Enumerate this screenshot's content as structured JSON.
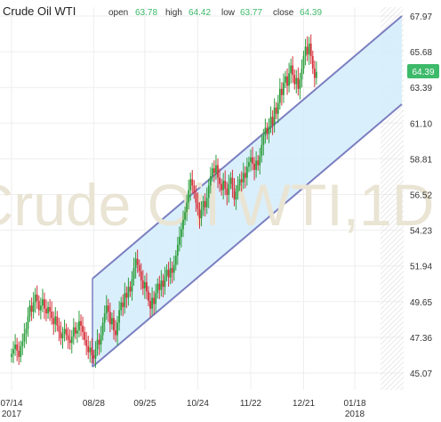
{
  "header": {
    "title": "Crude Oil WTI",
    "fields": [
      {
        "label": "open",
        "value": "63.78"
      },
      {
        "label": "high",
        "value": "64.42"
      },
      {
        "label": "low",
        "value": "63.77"
      },
      {
        "label": "close",
        "value": "64.39"
      }
    ]
  },
  "watermark": "Crude Oil WTI,1D",
  "last_price_badge": "64.39",
  "colors": {
    "up": "#2e9e3e",
    "down": "#d6313b",
    "channel_fill": "#d3ecfb",
    "channel_line": "#7b7fc0",
    "value_green": "#3dba6a",
    "watermark": "#e9e4d3",
    "grid": "#eeeeee"
  },
  "chart_data": {
    "type": "candlestick",
    "timeframe": "1D",
    "y_ticks": [
      "67.97",
      "65.68",
      "63.39",
      "61.10",
      "58.81",
      "56.52",
      "54.23",
      "51.94",
      "49.65",
      "47.36",
      "45.07"
    ],
    "x_ticks": [
      {
        "label": "07/14",
        "sub": "2017",
        "day": 0
      },
      {
        "label": "08/28",
        "sub": "",
        "day": 45
      },
      {
        "label": "09/25",
        "sub": "",
        "day": 73
      },
      {
        "label": "10/24",
        "sub": "",
        "day": 102
      },
      {
        "label": "11/22",
        "sub": "",
        "day": 131
      },
      {
        "label": "12/21",
        "sub": "",
        "day": 160
      },
      {
        "label": "01/18",
        "sub": "2018",
        "day": 188
      }
    ],
    "ylim": [
      45.07,
      67.97
    ],
    "xlim_days": [
      -4,
      220
    ],
    "series_close": [
      [
        0,
        46.3
      ],
      [
        1,
        46.6
      ],
      [
        2,
        46.9
      ],
      [
        3,
        46.5
      ],
      [
        4,
        46.1
      ],
      [
        5,
        46.8
      ],
      [
        6,
        47.1
      ],
      [
        7,
        47.6
      ],
      [
        8,
        47.9
      ],
      [
        9,
        48.7
      ],
      [
        10,
        49.4
      ],
      [
        11,
        49.0
      ],
      [
        12,
        49.6
      ],
      [
        13,
        50.1
      ],
      [
        14,
        49.7
      ],
      [
        15,
        49.1
      ],
      [
        16,
        49.4
      ],
      [
        17,
        49.8
      ],
      [
        18,
        49.2
      ],
      [
        19,
        48.9
      ],
      [
        20,
        49.3
      ],
      [
        21,
        49.0
      ],
      [
        22,
        48.6
      ],
      [
        23,
        48.2
      ],
      [
        24,
        48.7
      ],
      [
        25,
        48.1
      ],
      [
        26,
        47.7
      ],
      [
        27,
        47.3
      ],
      [
        28,
        47.6
      ],
      [
        29,
        47.9
      ],
      [
        30,
        47.5
      ],
      [
        31,
        47.2
      ],
      [
        32,
        47.0
      ],
      [
        33,
        47.4
      ],
      [
        34,
        48.0
      ],
      [
        35,
        47.6
      ],
      [
        36,
        47.8
      ],
      [
        37,
        48.4
      ],
      [
        38,
        48.1
      ],
      [
        39,
        47.7
      ],
      [
        40,
        47.2
      ],
      [
        41,
        46.8
      ],
      [
        42,
        46.4
      ],
      [
        43,
        46.7
      ],
      [
        44,
        46.2
      ],
      [
        45,
        46.0
      ],
      [
        46,
        46.6
      ],
      [
        47,
        47.2
      ],
      [
        48,
        46.9
      ],
      [
        49,
        47.5
      ],
      [
        50,
        48.3
      ],
      [
        51,
        48.9
      ],
      [
        52,
        49.4
      ],
      [
        53,
        49.0
      ],
      [
        54,
        48.2
      ],
      [
        55,
        48.6
      ],
      [
        56,
        47.8
      ],
      [
        57,
        47.5
      ],
      [
        58,
        48.3
      ],
      [
        59,
        49.1
      ],
      [
        60,
        49.6
      ],
      [
        61,
        49.3
      ],
      [
        62,
        50.2
      ],
      [
        63,
        49.9
      ],
      [
        64,
        50.6
      ],
      [
        65,
        50.3
      ],
      [
        66,
        51.1
      ],
      [
        67,
        51.8
      ],
      [
        68,
        52.4
      ],
      [
        69,
        52.0
      ],
      [
        70,
        51.6
      ],
      [
        71,
        51.0
      ],
      [
        72,
        50.5
      ],
      [
        73,
        50.9
      ],
      [
        74,
        50.3
      ],
      [
        75,
        49.7
      ],
      [
        76,
        49.2
      ],
      [
        77,
        49.9
      ],
      [
        78,
        49.5
      ],
      [
        79,
        50.2
      ],
      [
        80,
        50.8
      ],
      [
        81,
        50.4
      ],
      [
        82,
        51.0
      ],
      [
        83,
        50.6
      ],
      [
        84,
        51.3
      ],
      [
        85,
        51.7
      ],
      [
        86,
        51.2
      ],
      [
        87,
        51.8
      ],
      [
        88,
        51.5
      ],
      [
        89,
        52.0
      ],
      [
        90,
        52.6
      ],
      [
        91,
        53.3
      ],
      [
        92,
        53.8
      ],
      [
        93,
        54.3
      ],
      [
        94,
        54.9
      ],
      [
        95,
        55.4
      ],
      [
        96,
        56.0
      ],
      [
        97,
        56.8
      ],
      [
        98,
        57.5
      ],
      [
        99,
        57.1
      ],
      [
        100,
        56.6
      ],
      [
        101,
        56.0
      ],
      [
        102,
        55.6
      ],
      [
        103,
        55.0
      ],
      [
        104,
        55.5
      ],
      [
        105,
        56.1
      ],
      [
        106,
        55.7
      ],
      [
        107,
        56.3
      ],
      [
        108,
        57.1
      ],
      [
        109,
        57.7
      ],
      [
        110,
        58.2
      ],
      [
        111,
        57.9
      ],
      [
        112,
        58.4
      ],
      [
        113,
        57.6
      ],
      [
        114,
        57.2
      ],
      [
        115,
        56.8
      ],
      [
        116,
        57.4
      ],
      [
        117,
        56.9
      ],
      [
        118,
        56.5
      ],
      [
        119,
        57.2
      ],
      [
        120,
        57.6
      ],
      [
        121,
        56.9
      ],
      [
        122,
        56.2
      ],
      [
        123,
        56.7
      ],
      [
        124,
        57.1
      ],
      [
        125,
        57.5
      ],
      [
        126,
        57.3
      ],
      [
        127,
        57.9
      ],
      [
        128,
        57.6
      ],
      [
        129,
        58.3
      ],
      [
        130,
        58.6
      ],
      [
        131,
        58.9
      ],
      [
        132,
        58.5
      ],
      [
        133,
        58.1
      ],
      [
        134,
        58.7
      ],
      [
        135,
        58.4
      ],
      [
        136,
        59.0
      ],
      [
        137,
        59.7
      ],
      [
        138,
        60.3
      ],
      [
        139,
        60.8
      ],
      [
        140,
        60.4
      ],
      [
        141,
        60.9
      ],
      [
        142,
        61.5
      ],
      [
        143,
        61.0
      ],
      [
        144,
        62.1
      ],
      [
        145,
        61.7
      ],
      [
        146,
        62.4
      ],
      [
        147,
        63.3
      ],
      [
        148,
        62.9
      ],
      [
        149,
        63.7
      ],
      [
        150,
        64.1
      ],
      [
        151,
        63.5
      ],
      [
        152,
        64.3
      ],
      [
        153,
        64.8
      ],
      [
        154,
        64.2
      ],
      [
        155,
        63.6
      ],
      [
        156,
        64.0
      ],
      [
        157,
        63.3
      ],
      [
        158,
        63.9
      ],
      [
        159,
        64.6
      ],
      [
        160,
        65.4
      ],
      [
        161,
        66.0
      ],
      [
        162,
        65.5
      ],
      [
        163,
        66.2
      ],
      [
        164,
        65.4
      ],
      [
        165,
        64.6
      ],
      [
        166,
        64.0
      ],
      [
        167,
        64.39
      ]
    ]
  }
}
